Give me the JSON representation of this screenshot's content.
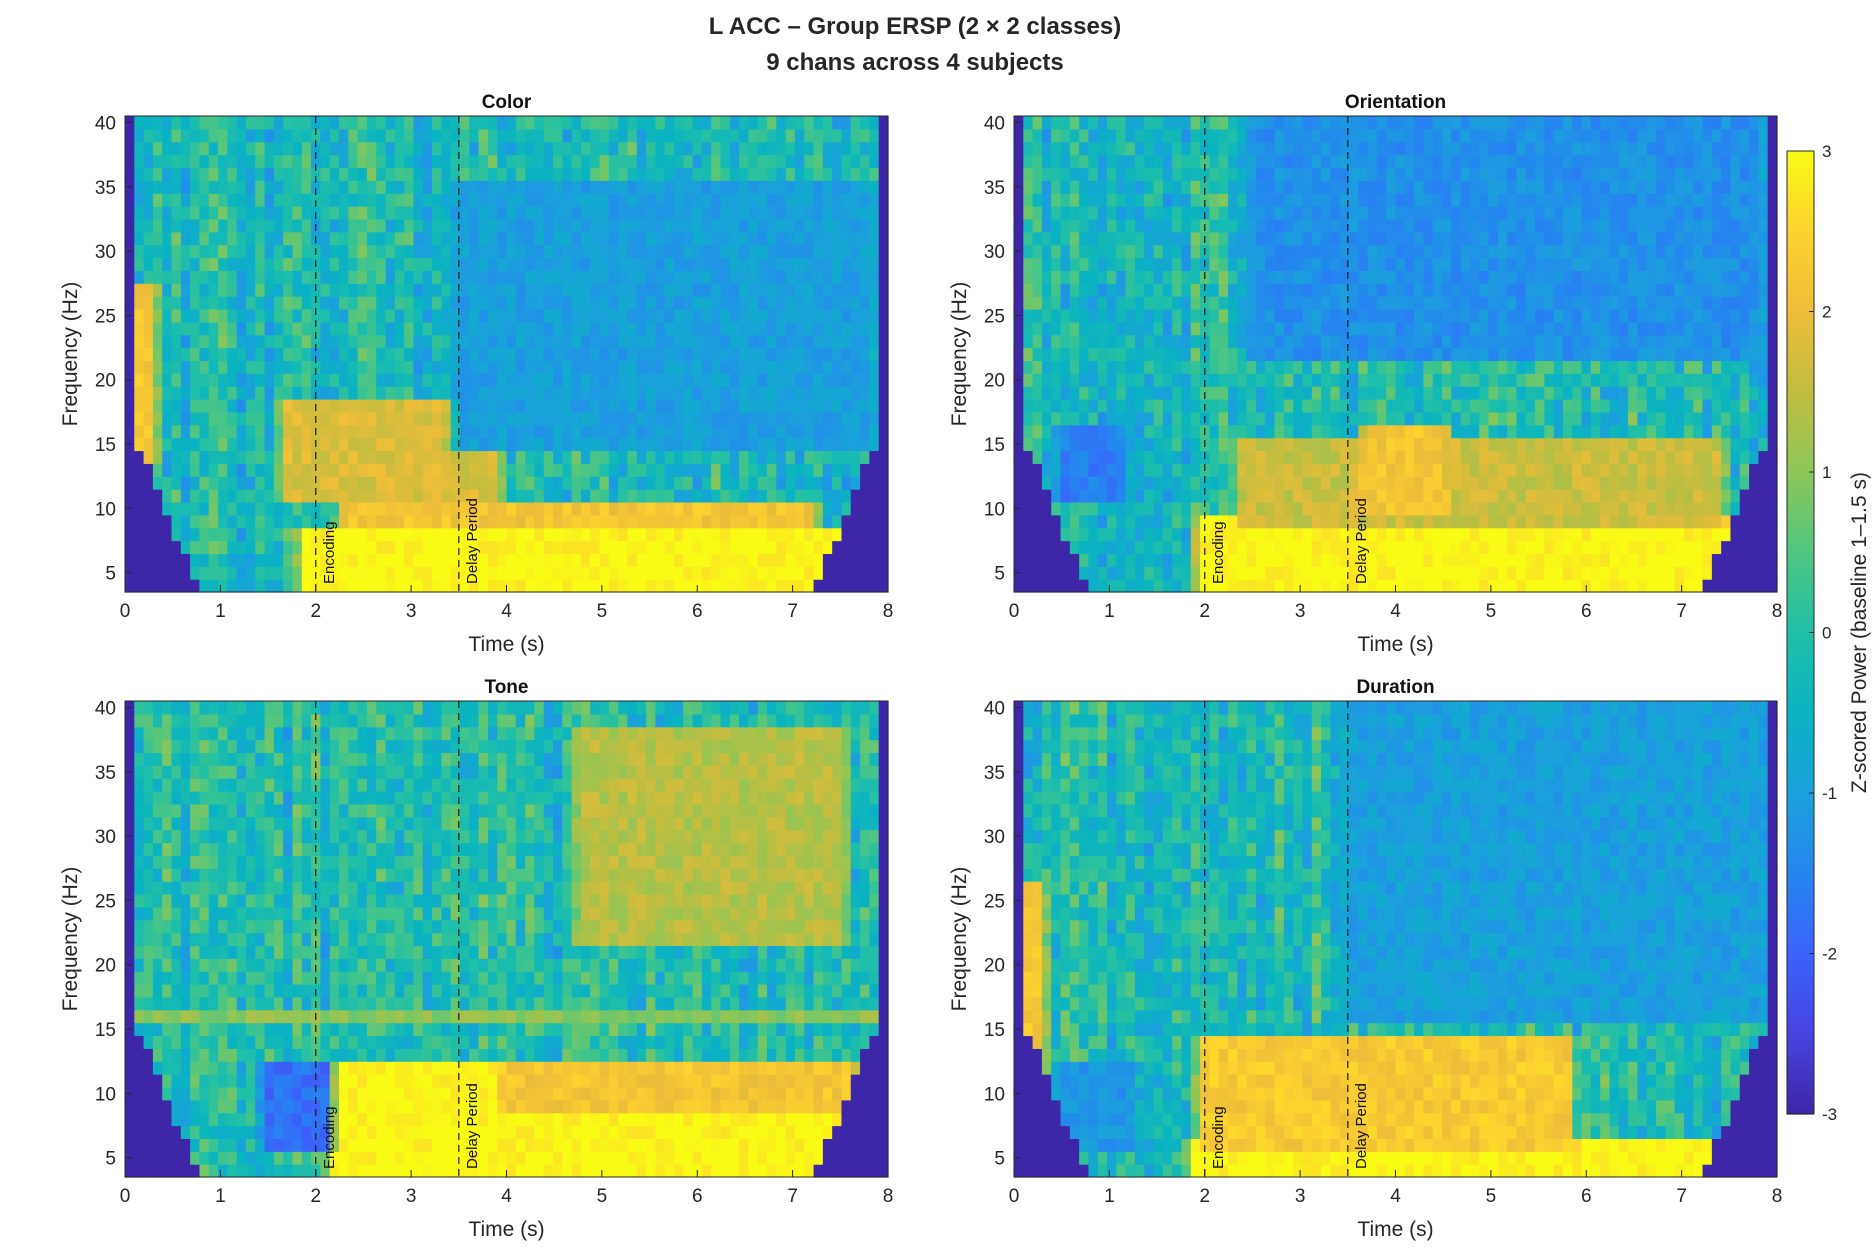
{
  "figure": {
    "title_line1": "L ACC  –  Group ERSP (2 × 2 classes)",
    "title_line2": "9 chans across 4 subjects"
  },
  "colorbar": {
    "label": "Z-scored Power (baseline 1–1.5 s)",
    "ticks": [
      3,
      2,
      1,
      0,
      -1,
      -2,
      -3
    ],
    "range": [
      -3,
      3
    ],
    "colormap": "parula",
    "stops": [
      "#3e26a8",
      "#4743e1",
      "#3a63fb",
      "#2586f0",
      "#1ba0dc",
      "#0ab3c2",
      "#20bfa8",
      "#4fc681",
      "#8dc657",
      "#c1bd40",
      "#eebd39",
      "#fcd22f",
      "#f9fb15"
    ]
  },
  "chart_data": [
    {
      "type": "heatmap",
      "title": "Color",
      "xlabel": "Time (s)",
      "ylabel": "Frequency (Hz)",
      "xlim": [
        0,
        8
      ],
      "ylim": [
        3.5,
        40.5
      ],
      "xticks": [
        0,
        1,
        2,
        3,
        4,
        5,
        6,
        7,
        8
      ],
      "yticks": [
        5,
        10,
        15,
        20,
        25,
        30,
        35,
        40
      ],
      "event_markers": [
        {
          "time": 2,
          "label": "Encoding"
        },
        {
          "time": 3.5,
          "label": "Delay Period"
        }
      ],
      "value_range": [
        -3,
        3
      ],
      "grid": false,
      "features": [
        {
          "description": "low-frequency power increase",
          "t": [
            1.9,
            7.6
          ],
          "f": [
            4,
            8.5
          ],
          "z": 3
        },
        {
          "description": "theta/alpha increase",
          "t": [
            2.3,
            7.2
          ],
          "f": [
            8.5,
            10
          ],
          "z": 2.2
        },
        {
          "description": "early broadband increase",
          "t": [
            0.05,
            0.25
          ],
          "f": [
            14,
            27
          ],
          "z": 2.2
        },
        {
          "description": "alpha/beta increase around encoding",
          "t": [
            1.7,
            3.9
          ],
          "f": [
            11,
            18
          ],
          "z": 1.8
        },
        {
          "description": "beta decrease",
          "t": [
            3.5,
            7.8
          ],
          "f": [
            15,
            35
          ],
          "z": -1
        }
      ]
    },
    {
      "type": "heatmap",
      "title": "Orientation",
      "xlabel": "Time (s)",
      "ylabel": "Frequency (Hz)",
      "xlim": [
        0,
        8
      ],
      "ylim": [
        3.5,
        40.5
      ],
      "xticks": [
        0,
        1,
        2,
        3,
        4,
        5,
        6,
        7,
        8
      ],
      "yticks": [
        5,
        10,
        15,
        20,
        25,
        30,
        35,
        40
      ],
      "event_markers": [
        {
          "time": 2,
          "label": "Encoding"
        },
        {
          "time": 3.5,
          "label": "Delay Period"
        }
      ],
      "value_range": [
        -3,
        3
      ],
      "grid": false,
      "features": [
        {
          "description": "low-frequency power increase",
          "t": [
            2.0,
            7.5
          ],
          "f": [
            4,
            9
          ],
          "z": 3
        },
        {
          "description": "alpha increase",
          "t": [
            2.4,
            7.4
          ],
          "f": [
            9,
            15
          ],
          "z": 1.6
        },
        {
          "description": "alpha peak after delay onset",
          "t": [
            3.7,
            4.5
          ],
          "f": [
            10,
            16
          ],
          "z": 2.2
        },
        {
          "description": "alpha decrease",
          "t": [
            0.5,
            1.1
          ],
          "f": [
            11,
            16
          ],
          "z": -1.6
        },
        {
          "description": "beta decrease",
          "t": [
            2.5,
            7.8
          ],
          "f": [
            22,
            40
          ],
          "z": -1.3
        }
      ]
    },
    {
      "type": "heatmap",
      "title": "Tone",
      "xlabel": "Time (s)",
      "ylabel": "Frequency (Hz)",
      "xlim": [
        0,
        8
      ],
      "ylim": [
        3.5,
        40.5
      ],
      "xticks": [
        0,
        1,
        2,
        3,
        4,
        5,
        6,
        7,
        8
      ],
      "yticks": [
        5,
        10,
        15,
        20,
        25,
        30,
        35,
        40
      ],
      "event_markers": [
        {
          "time": 2,
          "label": "Encoding"
        },
        {
          "time": 3.5,
          "label": "Delay Period"
        }
      ],
      "value_range": [
        -3,
        3
      ],
      "grid": false,
      "features": [
        {
          "description": "low-frequency power increase",
          "t": [
            2.2,
            7.6
          ],
          "f": [
            4,
            12.5
          ],
          "z": 3
        },
        {
          "description": "alpha band increase",
          "t": [
            4.0,
            7.5
          ],
          "f": [
            9,
            12.5
          ],
          "z": 2.2
        },
        {
          "description": "band near 16 Hz",
          "t": [
            0.1,
            7.9
          ],
          "f": [
            15.5,
            16.8
          ],
          "z": 1
        },
        {
          "description": "alpha decrease before encoding",
          "t": [
            1.5,
            2.1
          ],
          "f": [
            6,
            12
          ],
          "z": -1.8
        },
        {
          "description": "beta increases",
          "t": [
            4.8,
            7.5
          ],
          "f": [
            22,
            38
          ],
          "z": 1.4
        }
      ]
    },
    {
      "type": "heatmap",
      "title": "Duration",
      "xlabel": "Time (s)",
      "ylabel": "Frequency (Hz)",
      "xlim": [
        0,
        8
      ],
      "ylim": [
        3.5,
        40.5
      ],
      "xticks": [
        0,
        1,
        2,
        3,
        4,
        5,
        6,
        7,
        8
      ],
      "yticks": [
        5,
        10,
        15,
        20,
        25,
        30,
        35,
        40
      ],
      "event_markers": [
        {
          "time": 2,
          "label": "Encoding"
        },
        {
          "time": 3.5,
          "label": "Delay Period"
        }
      ],
      "value_range": [
        -3,
        3
      ],
      "grid": false,
      "features": [
        {
          "description": "low-frequency power increase",
          "t": [
            1.9,
            7.4
          ],
          "f": [
            4,
            6
          ],
          "z": 3
        },
        {
          "description": "theta/alpha increase",
          "t": [
            2.0,
            5.8
          ],
          "f": [
            6,
            14.5
          ],
          "z": 2.3
        },
        {
          "description": "early broadband increase",
          "t": [
            0.05,
            0.25
          ],
          "f": [
            12,
            26
          ],
          "z": 2.2
        },
        {
          "description": "alpha decrease",
          "t": [
            0.5,
            1.2
          ],
          "f": [
            6,
            12
          ],
          "z": -1.2
        },
        {
          "description": "beta decrease",
          "t": [
            3.5,
            7.9
          ],
          "f": [
            16,
            40
          ],
          "z": -1
        }
      ]
    }
  ]
}
